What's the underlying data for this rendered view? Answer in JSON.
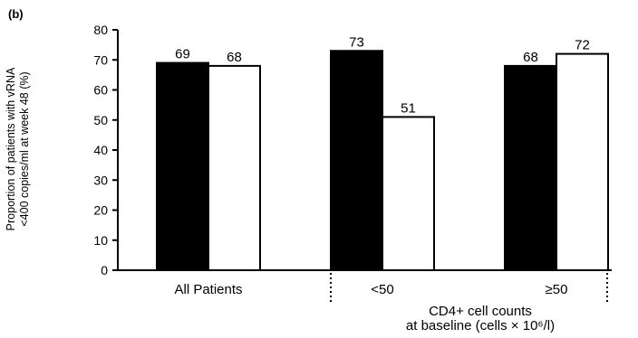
{
  "panel_label": "(b)",
  "chart_data": {
    "type": "bar",
    "ylabel_lines": [
      "Proportion of patients with vRNA",
      "<400 copies/ml at week 48 (%)"
    ],
    "ylim": [
      0,
      80
    ],
    "yticks": [
      0,
      10,
      20,
      30,
      40,
      50,
      60,
      70,
      80
    ],
    "categories": [
      "All Patients",
      "< 50",
      "≥ 50"
    ],
    "category_labels": [
      "All Patients",
      "<50",
      "≥50"
    ],
    "xlabel_lines": [
      "CD4+ cell counts",
      "at baseline (cells × 10⁶/l)"
    ],
    "series": [
      {
        "fill": "#000000",
        "values": [
          69,
          73,
          68
        ]
      },
      {
        "fill": "#ffffff",
        "values": [
          68,
          51,
          72
        ]
      }
    ],
    "grid": false
  }
}
